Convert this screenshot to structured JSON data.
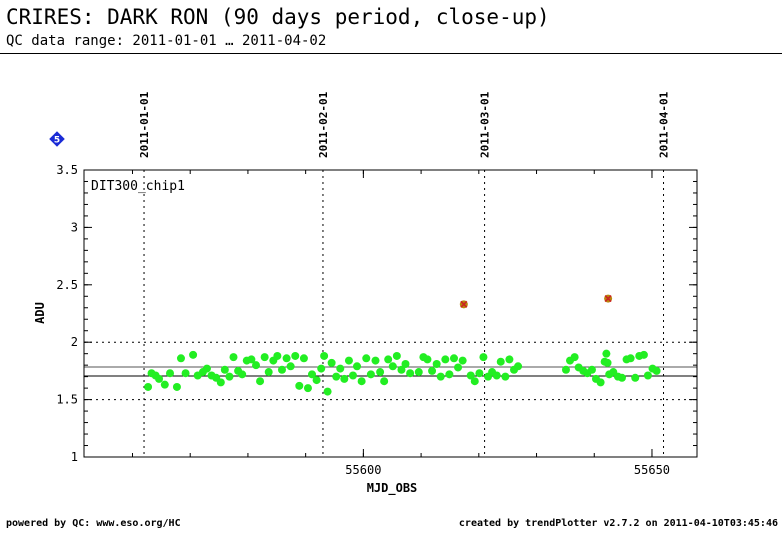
{
  "header": {
    "title": "CRIRES: DARK RON (90 days period, close-up)",
    "subtitle": "QC data range: 2011-01-01 … 2011-04-02"
  },
  "footer": {
    "left": "powered by QC: www.eso.org/HC",
    "right": "created by trendPlotter v2.7.2 on 2011-04-10T03:45:46"
  },
  "badge": {
    "text": "5",
    "color": "#1a2bd6"
  },
  "chart_data": {
    "type": "scatter",
    "panel_label": "DIT300_chip1",
    "xlabel": "MJD_OBS",
    "ylabel": "ADU",
    "xlim": [
      55551.6,
      55657.8
    ],
    "ylim": [
      1,
      3.5
    ],
    "x_ticks": [
      55600,
      55650
    ],
    "y_ticks": [
      1,
      1.5,
      2,
      2.5,
      3,
      3.5
    ],
    "y_tick_labels": [
      "1",
      "1.5",
      "2",
      "2.5",
      "3",
      "3.5"
    ],
    "date_markers": [
      {
        "label": "2011-01-01",
        "x": 55562
      },
      {
        "label": "2011-02-01",
        "x": 55593
      },
      {
        "label": "2011-03-01",
        "x": 55621
      },
      {
        "label": "2011-04-01",
        "x": 55652
      }
    ],
    "mean_line": 1.74,
    "upper_threshold": 1.74,
    "limit_lines": [
      1.5,
      2.0
    ],
    "colors": {
      "points": "#22ee22",
      "outliers": "#b8860b",
      "outlier_cross": "#cc2222"
    },
    "points": [
      [
        55562.7,
        1.61
      ],
      [
        55563.3,
        1.73
      ],
      [
        55564.0,
        1.71
      ],
      [
        55564.6,
        1.68
      ],
      [
        55565.6,
        1.63
      ],
      [
        55566.5,
        1.73
      ],
      [
        55567.7,
        1.61
      ],
      [
        55568.4,
        1.86
      ],
      [
        55569.2,
        1.73
      ],
      [
        55570.5,
        1.89
      ],
      [
        55571.3,
        1.71
      ],
      [
        55572.2,
        1.74
      ],
      [
        55572.9,
        1.77
      ],
      [
        55573.7,
        1.71
      ],
      [
        55574.5,
        1.69
      ],
      [
        55575.3,
        1.65
      ],
      [
        55576.0,
        1.76
      ],
      [
        55576.8,
        1.7
      ],
      [
        55577.5,
        1.87
      ],
      [
        55578.3,
        1.75
      ],
      [
        55579.0,
        1.72
      ],
      [
        55579.8,
        1.84
      ],
      [
        55580.6,
        1.85
      ],
      [
        55581.4,
        1.8
      ],
      [
        55582.1,
        1.66
      ],
      [
        55582.9,
        1.87
      ],
      [
        55583.6,
        1.74
      ],
      [
        55584.4,
        1.84
      ],
      [
        55585.1,
        1.88
      ],
      [
        55585.9,
        1.76
      ],
      [
        55586.7,
        1.86
      ],
      [
        55587.4,
        1.79
      ],
      [
        55588.2,
        1.88
      ],
      [
        55588.9,
        1.62
      ],
      [
        55589.7,
        1.86
      ],
      [
        55590.4,
        1.6
      ],
      [
        55591.1,
        1.72
      ],
      [
        55591.9,
        1.67
      ],
      [
        55592.7,
        1.77
      ],
      [
        55593.2,
        1.88
      ],
      [
        55593.8,
        1.57
      ],
      [
        55594.5,
        1.82
      ],
      [
        55595.3,
        1.7
      ],
      [
        55596.0,
        1.77
      ],
      [
        55596.7,
        1.68
      ],
      [
        55597.5,
        1.84
      ],
      [
        55598.2,
        1.71
      ],
      [
        55598.9,
        1.79
      ],
      [
        55599.7,
        1.66
      ],
      [
        55600.5,
        1.86
      ],
      [
        55601.3,
        1.72
      ],
      [
        55602.1,
        1.84
      ],
      [
        55602.9,
        1.74
      ],
      [
        55603.6,
        1.66
      ],
      [
        55604.3,
        1.85
      ],
      [
        55605.1,
        1.79
      ],
      [
        55605.8,
        1.88
      ],
      [
        55606.6,
        1.76
      ],
      [
        55607.3,
        1.81
      ],
      [
        55608.1,
        1.73
      ],
      [
        55609.6,
        1.74
      ],
      [
        55610.4,
        1.87
      ],
      [
        55611.1,
        1.85
      ],
      [
        55611.9,
        1.75
      ],
      [
        55612.7,
        1.81
      ],
      [
        55613.4,
        1.7
      ],
      [
        55614.2,
        1.85
      ],
      [
        55614.9,
        1.72
      ],
      [
        55615.7,
        1.86
      ],
      [
        55616.4,
        1.78
      ],
      [
        55617.2,
        1.84
      ],
      [
        55618.6,
        1.71
      ],
      [
        55619.3,
        1.66
      ],
      [
        55620.1,
        1.73
      ],
      [
        55620.8,
        1.87
      ],
      [
        55621.6,
        1.7
      ],
      [
        55622.3,
        1.74
      ],
      [
        55623.1,
        1.71
      ],
      [
        55623.8,
        1.83
      ],
      [
        55624.6,
        1.7
      ],
      [
        55625.3,
        1.85
      ],
      [
        55626.1,
        1.76
      ],
      [
        55626.8,
        1.79
      ],
      [
        55635.1,
        1.76
      ],
      [
        55635.8,
        1.84
      ],
      [
        55636.6,
        1.87
      ],
      [
        55637.3,
        1.78
      ],
      [
        55638.1,
        1.75
      ],
      [
        55638.8,
        1.73
      ],
      [
        55639.6,
        1.76
      ],
      [
        55640.3,
        1.68
      ],
      [
        55641.1,
        1.65
      ],
      [
        55641.8,
        1.83
      ],
      [
        55642.1,
        1.9
      ],
      [
        55642.3,
        1.82
      ],
      [
        55642.6,
        1.72
      ],
      [
        55643.3,
        1.74
      ],
      [
        55644.1,
        1.7
      ],
      [
        55644.8,
        1.69
      ],
      [
        55645.6,
        1.85
      ],
      [
        55646.3,
        1.86
      ],
      [
        55647.1,
        1.69
      ],
      [
        55647.8,
        1.88
      ],
      [
        55648.6,
        1.89
      ],
      [
        55649.3,
        1.71
      ],
      [
        55650.1,
        1.77
      ],
      [
        55650.8,
        1.75
      ]
    ],
    "outliers": [
      [
        55617.4,
        2.33
      ],
      [
        55642.4,
        2.38
      ]
    ]
  }
}
